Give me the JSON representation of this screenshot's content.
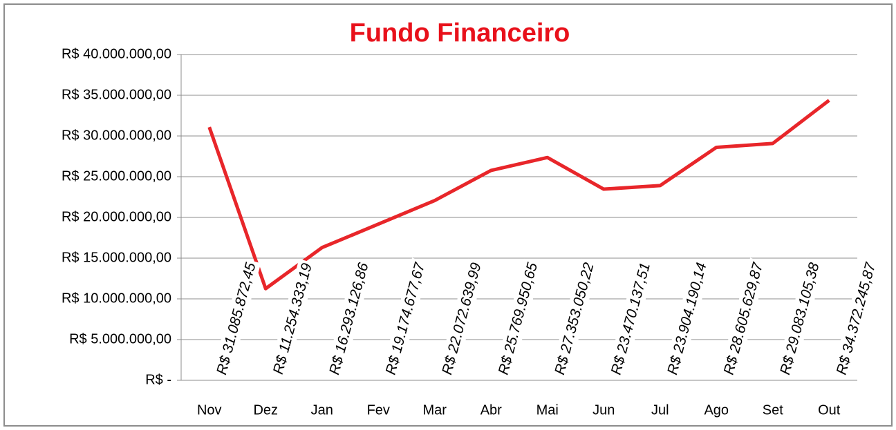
{
  "chart_data": {
    "type": "line",
    "title": "Fundo Financeiro",
    "categories": [
      "Nov",
      "Dez",
      "Jan",
      "Fev",
      "Mar",
      "Abr",
      "Mai",
      "Jun",
      "Jul",
      "Ago",
      "Set",
      "Out"
    ],
    "series": [
      {
        "name": "Fundo Financeiro",
        "color": "#e8262a",
        "values": [
          31085872.45,
          11254333.19,
          16293126.86,
          19174677.67,
          22072639.99,
          25769950.65,
          27353050.22,
          23470137.51,
          23904190.14,
          28605629.87,
          29083105.38,
          34372245.87
        ],
        "value_labels": [
          "R$ 31.085.872,45",
          "R$ 11.254.333,19",
          "R$ 16.293.126,86",
          "R$ 19.174.677,67",
          "R$ 22.072.639,99",
          "R$ 25.769.950,65",
          "R$ 27.353.050,22",
          "R$ 23.470.137,51",
          "R$ 23.904.190,14",
          "R$ 28.605.629,87",
          "R$ 29.083.105,38",
          "R$ 34.372.245,87"
        ]
      }
    ],
    "ylim": [
      0,
      40000000
    ],
    "yticks": [
      {
        "value": 0,
        "label": "R$ -"
      },
      {
        "value": 5000000,
        "label": "R$ 5.000.000,00"
      },
      {
        "value": 10000000,
        "label": "R$ 10.000.000,00"
      },
      {
        "value": 15000000,
        "label": "R$ 15.000.000,00"
      },
      {
        "value": 20000000,
        "label": "R$ 20.000.000,00"
      },
      {
        "value": 25000000,
        "label": "R$ 25.000.000,00"
      },
      {
        "value": 30000000,
        "label": "R$ 30.000.000,00"
      },
      {
        "value": 35000000,
        "label": "R$ 35.000.000,00"
      },
      {
        "value": 40000000,
        "label": "R$ 40.000.000,00"
      }
    ],
    "grid": true
  }
}
